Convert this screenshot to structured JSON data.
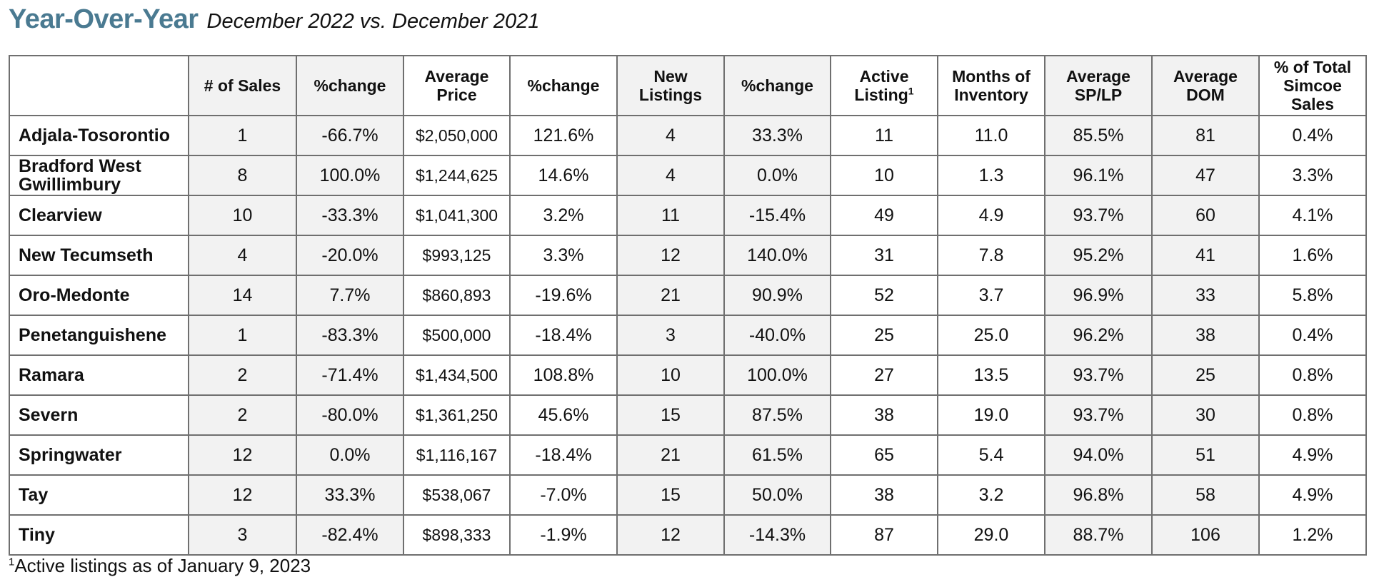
{
  "title": {
    "main": "Year-Over-Year",
    "sub": "December 2022 vs. December 2021"
  },
  "table": {
    "headers": [
      "",
      "# of Sales",
      "%change",
      "Average Price",
      "%change",
      "New Listings",
      "%change",
      "Active Listing",
      "Months of Inventory",
      "Average SP/LP",
      "Average DOM",
      "% of Total Simcoe Sales"
    ],
    "active_listing_superscript": "1",
    "rows": [
      [
        "Adjala-Tosorontio",
        "1",
        "-66.7%",
        "$2,050,000",
        "121.6%",
        "4",
        "33.3%",
        "11",
        "11.0",
        "85.5%",
        "81",
        "0.4%"
      ],
      [
        "Bradford West Gwillimbury",
        "8",
        "100.0%",
        "$1,244,625",
        "14.6%",
        "4",
        "0.0%",
        "10",
        "1.3",
        "96.1%",
        "47",
        "3.3%"
      ],
      [
        "Clearview",
        "10",
        "-33.3%",
        "$1,041,300",
        "3.2%",
        "11",
        "-15.4%",
        "49",
        "4.9",
        "93.7%",
        "60",
        "4.1%"
      ],
      [
        "New Tecumseth",
        "4",
        "-20.0%",
        "$993,125",
        "3.3%",
        "12",
        "140.0%",
        "31",
        "7.8",
        "95.2%",
        "41",
        "1.6%"
      ],
      [
        "Oro-Medonte",
        "14",
        "7.7%",
        "$860,893",
        "-19.6%",
        "21",
        "90.9%",
        "52",
        "3.7",
        "96.9%",
        "33",
        "5.8%"
      ],
      [
        "Penetanguishene",
        "1",
        "-83.3%",
        "$500,000",
        "-18.4%",
        "3",
        "-40.0%",
        "25",
        "25.0",
        "96.2%",
        "38",
        "0.4%"
      ],
      [
        "Ramara",
        "2",
        "-71.4%",
        "$1,434,500",
        "108.8%",
        "10",
        "100.0%",
        "27",
        "13.5",
        "93.7%",
        "25",
        "0.8%"
      ],
      [
        "Severn",
        "2",
        "-80.0%",
        "$1,361,250",
        "45.6%",
        "15",
        "87.5%",
        "38",
        "19.0",
        "93.7%",
        "30",
        "0.8%"
      ],
      [
        "Springwater",
        "12",
        "0.0%",
        "$1,116,167",
        "-18.4%",
        "21",
        "61.5%",
        "65",
        "5.4",
        "94.0%",
        "51",
        "4.9%"
      ],
      [
        "Tay",
        "12",
        "33.3%",
        "$538,067",
        "-7.0%",
        "15",
        "50.0%",
        "38",
        "3.2",
        "96.8%",
        "58",
        "4.9%"
      ],
      [
        "Tiny",
        "3",
        "-82.4%",
        "$898,333",
        "-1.9%",
        "12",
        "-14.3%",
        "87",
        "29.0",
        "88.7%",
        "106",
        "1.2%"
      ]
    ]
  },
  "footnote": {
    "marker": "1",
    "text": "Active listings as of January 9, 2023"
  },
  "colors": {
    "title_accent": "#4a7a91",
    "shaded_column": "#f2f2f2",
    "border": "#6f6f6f"
  }
}
